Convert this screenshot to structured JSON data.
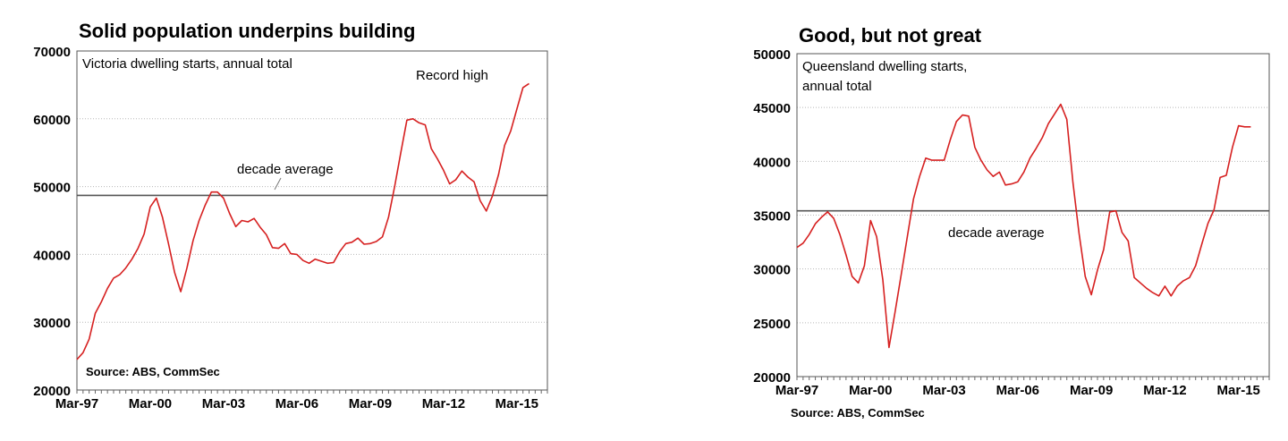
{
  "chart_data": [
    {
      "type": "line",
      "title": "Solid population underpins building",
      "subtitle": "Victoria dwelling starts, annual total",
      "source": "Source: ABS, CommSec",
      "annotations": {
        "record": "Record high",
        "average_label": "decade average"
      },
      "ylim": [
        20000,
        70000
      ],
      "yticks": [
        20000,
        30000,
        40000,
        50000,
        60000,
        70000
      ],
      "ytick_labels": [
        "20000",
        "30000",
        "40000",
        "50000",
        "60000",
        "70000"
      ],
      "xlim": [
        1997.0,
        2016.25
      ],
      "xticks": [
        1997,
        2000,
        2003,
        2006,
        2009,
        2012,
        2015
      ],
      "xtick_labels": [
        "Mar-97",
        "Mar-00",
        "Mar-03",
        "Mar-06",
        "Mar-09",
        "Mar-12",
        "Mar-15"
      ],
      "average": 48700,
      "grid": true,
      "line_color": "#d62020",
      "series": [
        {
          "x": [
            1997.0,
            1997.25,
            1997.5,
            1997.75,
            1998.0,
            1998.25,
            1998.5,
            1998.75,
            1999.0,
            1999.25,
            1999.5,
            1999.75,
            2000.0,
            2000.25,
            2000.5,
            2000.75,
            2001.0,
            2001.25,
            2001.5,
            2001.75,
            2002.0,
            2002.25,
            2002.5,
            2002.75,
            2003.0,
            2003.25,
            2003.5,
            2003.75,
            2004.0,
            2004.25,
            2004.5,
            2004.75,
            2005.0,
            2005.25,
            2005.5,
            2005.75,
            2006.0,
            2006.25,
            2006.5,
            2006.75,
            2007.0,
            2007.25,
            2007.5,
            2007.75,
            2008.0,
            2008.25,
            2008.5,
            2008.75,
            2009.0,
            2009.25,
            2009.5,
            2009.75,
            2010.0,
            2010.25,
            2010.5,
            2010.75,
            2011.0,
            2011.25,
            2011.5,
            2011.75,
            2012.0,
            2012.25,
            2012.5,
            2012.75,
            2013.0,
            2013.25,
            2013.5,
            2013.75,
            2014.0,
            2014.25,
            2014.5,
            2014.75,
            2015.0,
            2015.25,
            2015.5
          ],
          "values": [
            24500,
            25500,
            27500,
            31300,
            33000,
            35000,
            36500,
            37000,
            38000,
            39300,
            40900,
            43000,
            47000,
            48300,
            45500,
            41500,
            37300,
            34500,
            38000,
            42000,
            45000,
            47300,
            49200,
            49200,
            48300,
            46000,
            44100,
            45000,
            44800,
            45300,
            44000,
            42900,
            41000,
            40900,
            41600,
            40100,
            40000,
            39100,
            38700,
            39300,
            39000,
            38700,
            38800,
            40400,
            41600,
            41800,
            42400,
            41500,
            41600,
            41900,
            42600,
            45500,
            50000,
            55000,
            59800,
            60000,
            59400,
            59100,
            55600,
            54100,
            52400,
            50400,
            51000,
            52300,
            51400,
            50700,
            47900,
            46400,
            48600,
            51800,
            56100,
            58200,
            61400,
            64600,
            65200
          ]
        }
      ]
    },
    {
      "type": "line",
      "title": "Good, but not great",
      "subtitle": "Queensland dwelling starts,",
      "subtitle2": "annual total",
      "source": "Source: ABS, CommSec",
      "annotations": {
        "average_label": "decade average"
      },
      "ylim": [
        20000,
        50000
      ],
      "yticks": [
        20000,
        25000,
        30000,
        35000,
        40000,
        45000,
        50000
      ],
      "ytick_labels": [
        "20000",
        "25000",
        "30000",
        "35000",
        "40000",
        "45000",
        "50000"
      ],
      "xlim": [
        1997.0,
        2016.25
      ],
      "xticks": [
        1997,
        2000,
        2003,
        2006,
        2009,
        2012,
        2015
      ],
      "xtick_labels": [
        "Mar-97",
        "Mar-00",
        "Mar-03",
        "Mar-06",
        "Mar-09",
        "Mar-12",
        "Mar-15"
      ],
      "average": 35400,
      "grid": true,
      "line_color": "#d62020",
      "series": [
        {
          "x": [
            1997.0,
            1997.25,
            1997.5,
            1997.75,
            1998.0,
            1998.25,
            1998.5,
            1998.75,
            1999.0,
            1999.25,
            1999.5,
            1999.75,
            2000.0,
            2000.25,
            2000.5,
            2000.75,
            2001.0,
            2001.25,
            2001.5,
            2001.75,
            2002.0,
            2002.25,
            2002.5,
            2002.75,
            2003.0,
            2003.25,
            2003.5,
            2003.75,
            2004.0,
            2004.25,
            2004.5,
            2004.75,
            2005.0,
            2005.25,
            2005.5,
            2005.75,
            2006.0,
            2006.25,
            2006.5,
            2006.75,
            2007.0,
            2007.25,
            2007.5,
            2007.75,
            2008.0,
            2008.25,
            2008.5,
            2008.75,
            2009.0,
            2009.25,
            2009.5,
            2009.75,
            2010.0,
            2010.25,
            2010.5,
            2010.75,
            2011.0,
            2011.25,
            2011.5,
            2011.75,
            2012.0,
            2012.25,
            2012.5,
            2012.75,
            2013.0,
            2013.25,
            2013.5,
            2013.75,
            2014.0,
            2014.25,
            2014.5,
            2014.75,
            2015.0,
            2015.25,
            2015.5
          ],
          "values": [
            32000,
            32400,
            33200,
            34200,
            34800,
            35300,
            34700,
            33200,
            31300,
            29300,
            28700,
            30300,
            34500,
            33000,
            29000,
            22700,
            26000,
            29500,
            33000,
            36500,
            38600,
            40300,
            40100,
            40100,
            40100,
            42000,
            43700,
            44300,
            44200,
            41300,
            40100,
            39200,
            38600,
            39000,
            37800,
            37900,
            38100,
            39000,
            40300,
            41200,
            42200,
            43500,
            44400,
            45300,
            43900,
            38000,
            33300,
            29300,
            27600,
            29900,
            31800,
            35300,
            35400,
            33400,
            32600,
            29200,
            28700,
            28200,
            27800,
            27500,
            28400,
            27500,
            28400,
            28900,
            29200,
            30300,
            32300,
            34200,
            35500,
            38500,
            38700,
            41300,
            43300,
            43200,
            43200
          ]
        }
      ]
    }
  ]
}
